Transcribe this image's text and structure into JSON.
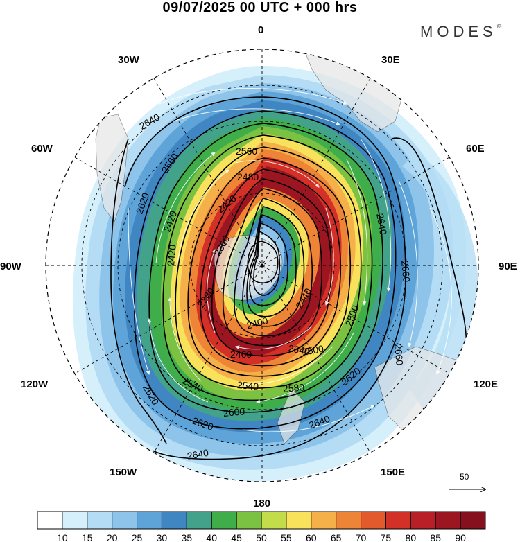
{
  "title": "09/07/2025  00 UTC  + 000 hrs",
  "brand": "MODES",
  "brand_mark": "©",
  "longitude_labels": {
    "top": "0",
    "top_left": "30W",
    "top_right": "30E",
    "upper_left": "60W",
    "upper_right": "60E",
    "left": "90W",
    "right": "90E",
    "lower_left": "120W",
    "lower_right": "120E",
    "bottom_left": "150W",
    "bottom_right": "150E",
    "bottom": "180"
  },
  "contour_labels": [
    "2640",
    "2560",
    "2560",
    "2480",
    "2620",
    "2420",
    "2420",
    "2360",
    "2420",
    "2640",
    "2660",
    "2380",
    "2400",
    "2440",
    "2500",
    "2640",
    "2460",
    "2500",
    "2660",
    "2540",
    "2540",
    "2580",
    "2620",
    "2620",
    "2600",
    "2620",
    "2640",
    "2640"
  ],
  "reference_vector": "50",
  "colorbar": {
    "ticks": [
      "10",
      "15",
      "20",
      "25",
      "30",
      "35",
      "40",
      "45",
      "50",
      "55",
      "60",
      "65",
      "70",
      "75",
      "80",
      "85",
      "90"
    ],
    "colors": [
      "#ffffff",
      "#d5effb",
      "#b4ddf5",
      "#8ec4ea",
      "#5ea4d8",
      "#3f86c2",
      "#42a38a",
      "#3fae4a",
      "#7cc242",
      "#c2dc4a",
      "#f8e25c",
      "#f6b04a",
      "#ee8435",
      "#e35a2c",
      "#d33127",
      "#b81f26",
      "#9c1622",
      "#86101d"
    ]
  }
}
